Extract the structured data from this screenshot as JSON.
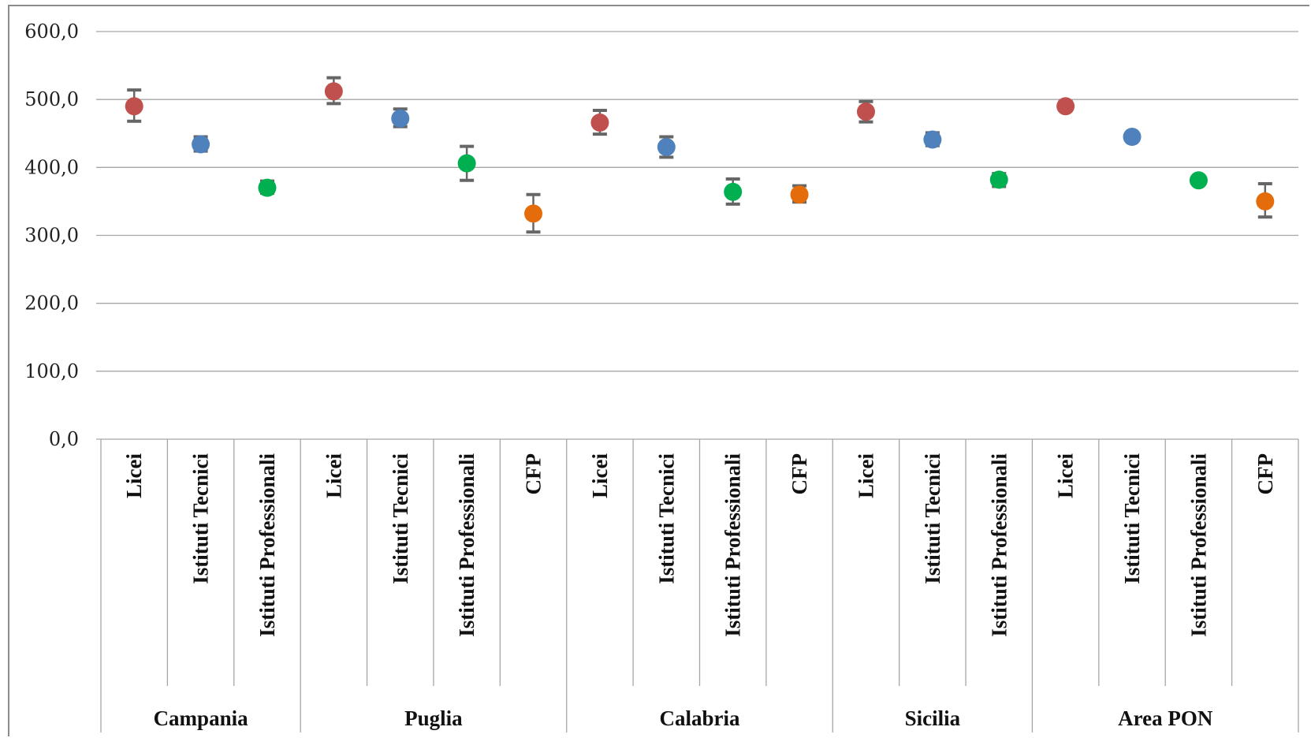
{
  "chart_data": {
    "type": "scatter",
    "ylim": [
      0,
      600
    ],
    "y_ticks": [
      "0,0",
      "100,0",
      "200,0",
      "300,0",
      "400,0",
      "500,0",
      "600,0"
    ],
    "grid": true,
    "groups": [
      {
        "name": "Campania",
        "points": [
          {
            "category": "Licei",
            "value": 490,
            "low": 468,
            "high": 514,
            "color": "#c0504d"
          },
          {
            "category": "Istituti Tecnici",
            "value": 434,
            "low": 424,
            "high": 445,
            "color": "#4f81bd"
          },
          {
            "category": "Istituti Professionali",
            "value": 370,
            "low": 362,
            "high": 380,
            "color": "#00b050"
          }
        ]
      },
      {
        "name": "Puglia",
        "points": [
          {
            "category": "Licei",
            "value": 512,
            "low": 494,
            "high": 532,
            "color": "#c0504d"
          },
          {
            "category": "Istituti Tecnici",
            "value": 472,
            "low": 460,
            "high": 486,
            "color": "#4f81bd"
          },
          {
            "category": "Istituti Professionali",
            "value": 406,
            "low": 381,
            "high": 431,
            "color": "#00b050"
          },
          {
            "category": "CFP",
            "value": 332,
            "low": 305,
            "high": 360,
            "color": "#e46c0a"
          }
        ]
      },
      {
        "name": "Calabria",
        "points": [
          {
            "category": "Licei",
            "value": 466,
            "low": 449,
            "high": 484,
            "color": "#c0504d"
          },
          {
            "category": "Istituti Tecnici",
            "value": 430,
            "low": 415,
            "high": 445,
            "color": "#4f81bd"
          },
          {
            "category": "Istituti Professionali",
            "value": 364,
            "low": 346,
            "high": 383,
            "color": "#00b050"
          },
          {
            "category": "CFP",
            "value": 360,
            "low": 349,
            "high": 373,
            "color": "#e46c0a"
          }
        ]
      },
      {
        "name": "Sicilia",
        "points": [
          {
            "category": "Licei",
            "value": 482,
            "low": 467,
            "high": 497,
            "color": "#c0504d"
          },
          {
            "category": "Istituti Tecnici",
            "value": 441,
            "low": 432,
            "high": 451,
            "color": "#4f81bd"
          },
          {
            "category": "Istituti Professionali",
            "value": 382,
            "low": 372,
            "high": 391,
            "color": "#00b050"
          }
        ]
      },
      {
        "name": "Area PON",
        "points": [
          {
            "category": "Licei",
            "value": 490,
            "low": 484,
            "high": 497,
            "color": "#c0504d"
          },
          {
            "category": "Istituti Tecnici",
            "value": 445,
            "low": 441,
            "high": 449,
            "color": "#4f81bd"
          },
          {
            "category": "Istituti Professionali",
            "value": 381,
            "low": 376,
            "high": 386,
            "color": "#00b050"
          },
          {
            "category": "CFP",
            "value": 350,
            "low": 327,
            "high": 376,
            "color": "#e46c0a"
          }
        ]
      }
    ]
  }
}
